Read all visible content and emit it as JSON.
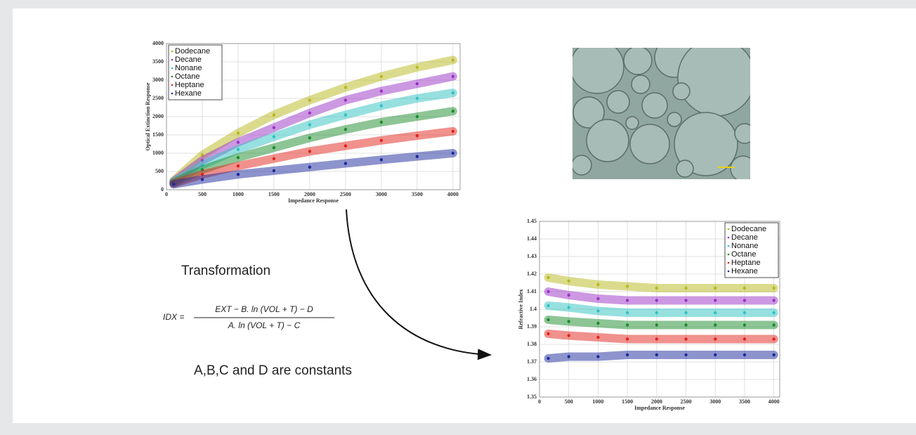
{
  "chart_data": [
    {
      "type": "scatter",
      "xlabel": "Impedance Response",
      "ylabel": "Optical Extinction Response",
      "x": [
        100,
        500,
        1000,
        1500,
        2000,
        2500,
        3000,
        3500,
        4000
      ],
      "xlim": [
        0,
        4100
      ],
      "xticks": [
        0,
        500,
        1000,
        1500,
        2000,
        2500,
        3000,
        3500,
        4000
      ],
      "ylim": [
        0,
        4000
      ],
      "yticks": [
        0,
        500,
        1000,
        1500,
        2000,
        2500,
        3000,
        3500,
        4000
      ],
      "grid": true,
      "legend": "upper left",
      "series": [
        {
          "name": "Dodecane",
          "color": "#b8b81c",
          "values": [
            250,
            950,
            1550,
            2050,
            2450,
            2800,
            3100,
            3350,
            3550
          ]
        },
        {
          "name": "Decane",
          "color": "#9a32c6",
          "values": [
            230,
            800,
            1300,
            1700,
            2100,
            2450,
            2700,
            2900,
            3100
          ]
        },
        {
          "name": "Nonane",
          "color": "#2fc2c2",
          "values": [
            210,
            680,
            1100,
            1450,
            1780,
            2050,
            2300,
            2500,
            2650
          ]
        },
        {
          "name": "Octane",
          "color": "#1b8c2c",
          "values": [
            190,
            550,
            880,
            1150,
            1420,
            1650,
            1850,
            2000,
            2150
          ]
        },
        {
          "name": "Heptane",
          "color": "#e2231b",
          "values": [
            170,
            420,
            650,
            850,
            1050,
            1200,
            1350,
            1480,
            1600
          ]
        },
        {
          "name": "Hexane",
          "color": "#1b2a9c",
          "values": [
            150,
            280,
            420,
            520,
            620,
            720,
            820,
            910,
            1000
          ]
        }
      ]
    },
    {
      "type": "scatter",
      "xlabel": "Impedance Response",
      "ylabel": "Refractive Index",
      "x": [
        150,
        500,
        1000,
        1500,
        2000,
        2500,
        3000,
        3500,
        4000
      ],
      "xlim": [
        0,
        4100
      ],
      "xticks": [
        0,
        500,
        1000,
        1500,
        2000,
        2500,
        3000,
        3500,
        4000
      ],
      "ylim": [
        1.35,
        1.45
      ],
      "yticks": [
        1.35,
        1.36,
        1.37,
        1.38,
        1.39,
        1.4,
        1.41,
        1.42,
        1.43,
        1.44,
        1.45
      ],
      "grid": true,
      "legend": "upper right",
      "series": [
        {
          "name": "Dodecane",
          "color": "#b8b81c",
          "values": [
            1.418,
            1.416,
            1.414,
            1.413,
            1.412,
            1.412,
            1.412,
            1.412,
            1.412
          ]
        },
        {
          "name": "Decane",
          "color": "#9a32c6",
          "values": [
            1.41,
            1.408,
            1.406,
            1.405,
            1.405,
            1.405,
            1.405,
            1.405,
            1.405
          ]
        },
        {
          "name": "Nonane",
          "color": "#2fc2c2",
          "values": [
            1.402,
            1.401,
            1.399,
            1.398,
            1.398,
            1.398,
            1.398,
            1.398,
            1.398
          ]
        },
        {
          "name": "Octane",
          "color": "#1b8c2c",
          "values": [
            1.394,
            1.393,
            1.392,
            1.391,
            1.391,
            1.391,
            1.391,
            1.391,
            1.391
          ]
        },
        {
          "name": "Heptane",
          "color": "#e2231b",
          "values": [
            1.386,
            1.385,
            1.384,
            1.383,
            1.383,
            1.383,
            1.383,
            1.383,
            1.383
          ]
        },
        {
          "name": "Hexane",
          "color": "#1b2a9c",
          "values": [
            1.372,
            1.373,
            1.373,
            1.374,
            1.374,
            1.374,
            1.374,
            1.374,
            1.374
          ]
        }
      ]
    }
  ],
  "annotation": {
    "label": "Transformation",
    "formula": {
      "lhs": "IDX =",
      "numerator": "EXT − B. ln (VOL + T) − D",
      "denominator": "A. ln (VOL + T) − C"
    },
    "note": "A,B,C and D are constants"
  }
}
